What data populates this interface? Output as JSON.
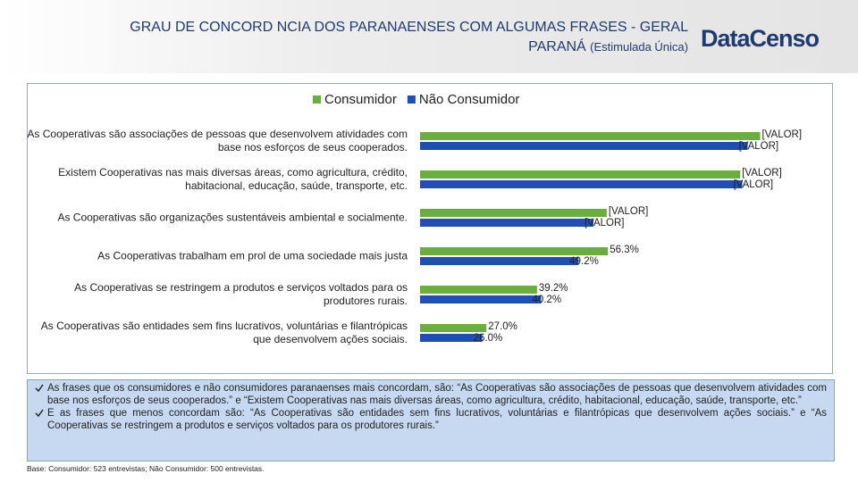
{
  "header": {
    "title_line1": "GRAU DE CONCORD NCIA DOS PARANAENSES COM ALGUMAS FRASES - GERAL",
    "title_line2": "PARANÁ",
    "title_note": "(Estimulada Única)",
    "logo": "DataCenso"
  },
  "chart_data": {
    "type": "barh",
    "categories": [
      "As Cooperativas são associações de pessoas que desenvolvem atividades com base nos esforços de seus cooperados.",
      "Existem Cooperativas nas mais diversas áreas, como agricultura, crédito, habitacional, educação, saúde, transporte, etc.",
      "As Cooperativas são organizações sustentáveis ambiental e socialmente.",
      "As Cooperativas trabalham em prol de uma sociedade mais justa",
      "As Cooperativas se restringem a produtos e serviços voltados para os produtores rurais.",
      "As Cooperativas são entidades sem fins lucrativos, voluntárias e filantrópicas que desenvolvem ações sociais."
    ],
    "series": [
      {
        "name": "Consumidor",
        "color": "#6aae3e",
        "values": [
          93.0,
          88.2,
          56.0,
          56.3,
          39.2,
          27.0
        ],
        "value_labels": [
          "[VALOR]",
          "[VALOR]",
          "[VALOR]",
          "56.3%",
          "39.2%",
          "27.0%"
        ]
      },
      {
        "name": "Não Consumidor",
        "color": "#1f4fb5",
        "values": [
          90.0,
          88.7,
          52.8,
          49.2,
          40.2,
          26.0
        ],
        "value_labels": [
          "[VALOR]",
          "[VALOR]",
          "[VALOR]",
          "49.2%",
          "40.2%",
          "26.0%"
        ]
      }
    ],
    "xlim": [
      11,
      100
    ],
    "legend": "top"
  },
  "notes": [
    "As frases que os consumidores e não consumidores paranaenses mais concordam, são: “As Cooperativas são associações de pessoas que desenvolvem atividades com base nos esforços de seus cooperados.” e “Existem Cooperativas nas mais diversas áreas, como agricultura, crédito, habitacional, educação, saúde, transporte, etc.”",
    "E as frases que menos concordam são: “As Cooperativas são entidades sem fins lucrativos, voluntárias e filantrópicas que desenvolvem ações sociais.” e “As Cooperativas se restringem a produtos e serviços voltados para os produtores rurais.”"
  ],
  "footnote": "Base: Consumidor: 523 entrevistas; Não Consumidor: 500 entrevistas."
}
